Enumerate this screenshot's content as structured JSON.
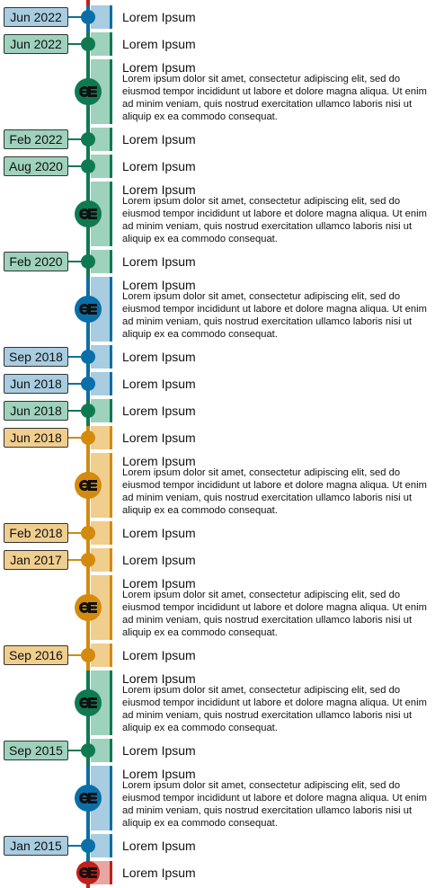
{
  "colors": {
    "blue": "#0a6fa8",
    "blue_light": "#a8cce0",
    "green": "#0f7a52",
    "green_light": "#9ed2bc",
    "orange": "#d48a0e",
    "orange_light": "#f0ce8e",
    "red": "#c0201c",
    "red_light": "#e8a6a2"
  },
  "icon": "oe-logo-icon",
  "items": [
    {
      "type": "point",
      "date": "Jun 2022",
      "color": "blue",
      "title": "Lorem Ipsum"
    },
    {
      "type": "point",
      "date": "Jun 2022",
      "color": "green",
      "title": "Lorem Ipsum"
    },
    {
      "type": "range",
      "color": "green",
      "title": "Lorem Ipsum",
      "text": "Lorem ipsum dolor sit amet, consectetur adipiscing elit, sed do eiusmod tempor incididunt ut labore et dolore magna aliqua. Ut enim ad minim veniam, quis nostrud exercitation ullamco laboris nisi ut aliquip ex ea commodo consequat."
    },
    {
      "type": "point",
      "date": "Feb 2022",
      "color": "green",
      "title": "Lorem Ipsum"
    },
    {
      "type": "point",
      "date": "Aug 2020",
      "color": "green",
      "title": "Lorem Ipsum"
    },
    {
      "type": "range",
      "color": "green",
      "title": "Lorem Ipsum",
      "text": "Lorem ipsum dolor sit amet, consectetur adipiscing elit, sed do eiusmod tempor incididunt ut labore et dolore magna aliqua. Ut enim ad minim veniam, quis nostrud exercitation ullamco laboris nisi ut aliquip ex ea commodo consequat."
    },
    {
      "type": "point",
      "date": "Feb 2020",
      "color": "green",
      "title": "Lorem Ipsum"
    },
    {
      "type": "range",
      "color": "blue",
      "title": "Lorem Ipsum",
      "text": "Lorem ipsum dolor sit amet, consectetur adipiscing elit, sed do eiusmod tempor incididunt ut labore et dolore magna aliqua. Ut enim ad minim veniam, quis nostrud exercitation ullamco laboris nisi ut aliquip ex ea commodo consequat."
    },
    {
      "type": "point",
      "date": "Sep 2018",
      "color": "blue",
      "title": "Lorem Ipsum"
    },
    {
      "type": "point",
      "date": "Jun 2018",
      "color": "blue",
      "title": "Lorem Ipsum"
    },
    {
      "type": "point",
      "date": "Jun 2018",
      "color": "green",
      "title": "Lorem Ipsum"
    },
    {
      "type": "point",
      "date": "Jun 2018",
      "color": "orange",
      "title": "Lorem Ipsum"
    },
    {
      "type": "range",
      "color": "orange",
      "title": "Lorem Ipsum",
      "text": "Lorem ipsum dolor sit amet, consectetur adipiscing elit, sed do eiusmod tempor incididunt ut labore et dolore magna aliqua. Ut enim ad minim veniam, quis nostrud exercitation ullamco laboris nisi ut aliquip ex ea commodo consequat."
    },
    {
      "type": "point",
      "date": "Feb 2018",
      "color": "orange",
      "title": "Lorem Ipsum"
    },
    {
      "type": "point",
      "date": "Jan 2017",
      "color": "orange",
      "title": "Lorem Ipsum"
    },
    {
      "type": "range",
      "color": "orange",
      "title": "Lorem Ipsum",
      "text": "Lorem ipsum dolor sit amet, consectetur adipiscing elit, sed do eiusmod tempor incididunt ut labore et dolore magna aliqua. Ut enim ad minim veniam, quis nostrud exercitation ullamco laboris nisi ut aliquip ex ea commodo consequat."
    },
    {
      "type": "point",
      "date": "Sep 2016",
      "color": "orange",
      "title": "Lorem Ipsum"
    },
    {
      "type": "range",
      "color": "green",
      "title": "Lorem Ipsum",
      "text": "Lorem ipsum dolor sit amet, consectetur adipiscing elit, sed do eiusmod tempor incididunt ut labore et dolore magna aliqua. Ut enim ad minim veniam, quis nostrud exercitation ullamco laboris nisi ut aliquip ex ea commodo consequat."
    },
    {
      "type": "point",
      "date": "Sep 2015",
      "color": "green",
      "title": "Lorem Ipsum"
    },
    {
      "type": "range",
      "color": "blue",
      "title": "Lorem Ipsum",
      "text": "Lorem ipsum dolor sit amet, consectetur adipiscing elit, sed do eiusmod tempor incididunt ut labore et dolore magna aliqua. Ut enim ad minim veniam, quis nostrud exercitation ullamco laboris nisi ut aliquip ex ea commodo consequat."
    },
    {
      "type": "point",
      "date": "Jan 2015",
      "color": "blue",
      "title": "Lorem Ipsum"
    },
    {
      "type": "start",
      "color": "red",
      "title": "Lorem Ipsum"
    }
  ]
}
